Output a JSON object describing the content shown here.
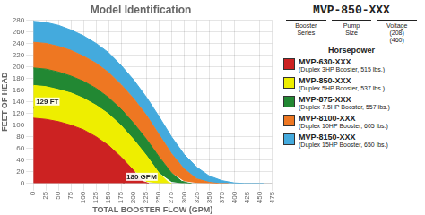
{
  "chart_data": {
    "type": "area",
    "title": "Model Identification",
    "xlabel": "TOTAL BOOSTER FLOW (GPM)",
    "ylabel": "FEET OF HEAD",
    "xlim": [
      0,
      475
    ],
    "ylim": [
      0,
      280
    ],
    "xticks": [
      0,
      25,
      50,
      75,
      100,
      125,
      150,
      175,
      200,
      225,
      250,
      275,
      300,
      325,
      350,
      375,
      400,
      425,
      450,
      475
    ],
    "yticks": [
      0,
      20,
      40,
      60,
      80,
      100,
      120,
      140,
      160,
      180,
      200,
      220,
      240,
      260,
      280
    ],
    "grid": true,
    "legend": "right",
    "series": [
      {
        "name": "MVP-630-XXX",
        "description": "(Duplex 3HP Booster, 515 lbs.)",
        "color": "#cc2222",
        "x": [
          0,
          25,
          50,
          75,
          100,
          125,
          150,
          175,
          200,
          210,
          220,
          230
        ],
        "values": [
          112,
          110,
          106,
          100,
          92,
          80,
          65,
          45,
          22,
          10,
          3,
          0
        ],
        "base": [
          0,
          0,
          0,
          0,
          0,
          0,
          0,
          0,
          0,
          0,
          0,
          0
        ]
      },
      {
        "name": "MVP-850-XXX",
        "description": "(Duplex 5HP Booster, 537 lbs.)",
        "color": "#eeee00",
        "x": [
          0,
          25,
          50,
          75,
          100,
          125,
          150,
          175,
          200,
          225,
          250,
          268,
          275
        ],
        "values": [
          168,
          166,
          161,
          155,
          146,
          134,
          119,
          99,
          75,
          48,
          18,
          3,
          0
        ],
        "base": [
          112,
          110,
          106,
          100,
          92,
          80,
          65,
          45,
          22,
          3,
          0,
          0,
          0
        ]
      },
      {
        "name": "MVP-875-XXX",
        "description": "(Duplex 7.5HP Booster, 557 lbs.)",
        "color": "#228833",
        "x": [
          0,
          25,
          50,
          75,
          100,
          125,
          150,
          175,
          200,
          225,
          250,
          275,
          295,
          308,
          315
        ],
        "values": [
          198,
          196,
          191,
          184,
          175,
          163,
          147,
          127,
          103,
          76,
          46,
          18,
          4,
          1,
          0
        ],
        "base": [
          168,
          166,
          161,
          155,
          146,
          134,
          119,
          99,
          75,
          48,
          18,
          3,
          0,
          0,
          0
        ]
      },
      {
        "name": "MVP-8100-XXX",
        "description": "(Duplex 10HP Booster, 605 lbs.)",
        "color": "#ee7722",
        "x": [
          0,
          25,
          50,
          75,
          100,
          125,
          150,
          175,
          200,
          225,
          250,
          275,
          300,
          325,
          350,
          370,
          380,
          388
        ],
        "values": [
          242,
          240,
          235,
          228,
          218,
          206,
          190,
          169,
          145,
          117,
          84,
          51,
          25,
          8,
          2,
          0,
          0,
          0
        ],
        "base": [
          198,
          196,
          191,
          184,
          175,
          163,
          147,
          127,
          103,
          76,
          46,
          18,
          4,
          1,
          0,
          0,
          0,
          0
        ]
      },
      {
        "name": "MVP-8150-XXX",
        "description": "(Duplex 15HP Booster, 650 lbs.)",
        "color": "#44aadd",
        "x": [
          0,
          25,
          50,
          75,
          100,
          125,
          150,
          175,
          200,
          225,
          250,
          275,
          300,
          325,
          350,
          375,
          400,
          420,
          435,
          450,
          458
        ],
        "values": [
          278,
          276,
          271,
          263,
          253,
          240,
          224,
          202,
          177,
          148,
          115,
          80,
          50,
          28,
          13,
          5,
          1,
          0,
          0,
          0,
          0
        ],
        "base": [
          242,
          240,
          235,
          228,
          218,
          206,
          190,
          169,
          145,
          117,
          84,
          51,
          25,
          8,
          2,
          0,
          0,
          0,
          0,
          0,
          0
        ]
      }
    ],
    "annotations": [
      {
        "x": 180,
        "y": 129,
        "x_label": "180 GPM",
        "y_label": "129 FT",
        "color": "red"
      }
    ],
    "model_key": {
      "title": "MVP-850-XXX",
      "parts": [
        "Booster\nSeries",
        "Pump\nSize",
        "Voltage\n(208)\n(460)"
      ],
      "subtitle": "Horsepower"
    }
  }
}
